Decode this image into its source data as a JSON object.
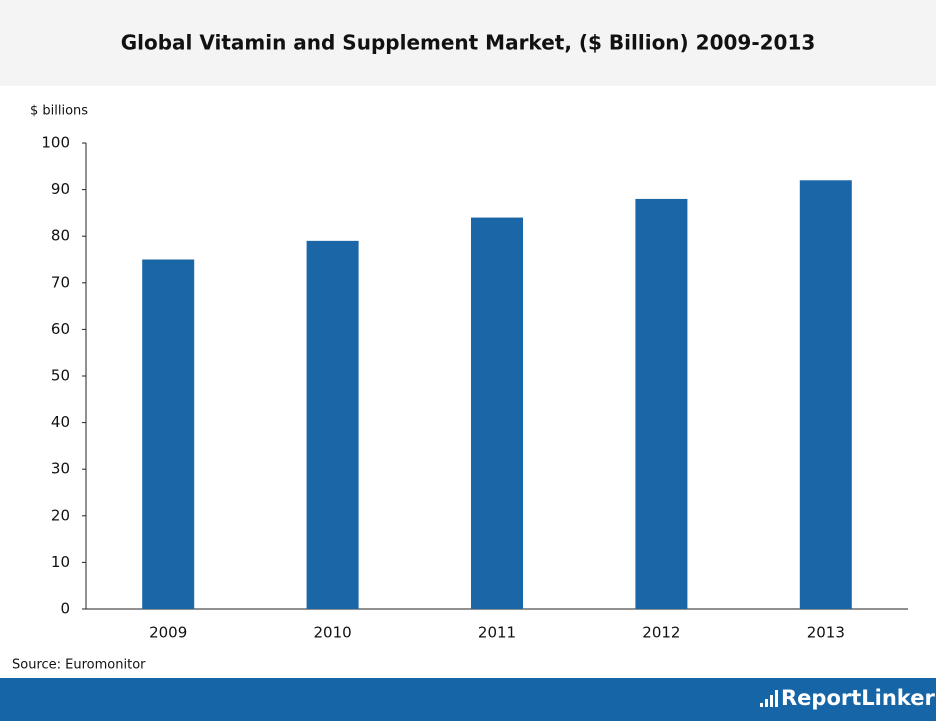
{
  "chart_data": {
    "type": "bar",
    "title": "Global Vitamin and Supplement Market, ($ Billion) 2009-2013",
    "ylabel": "$ billions",
    "categories": [
      "2009",
      "2010",
      "2011",
      "2012",
      "2013"
    ],
    "values": [
      75,
      79,
      84,
      88,
      92
    ],
    "color": "#1a66a6",
    "ylim": [
      0,
      100
    ],
    "yticks": [
      0,
      10,
      20,
      30,
      40,
      50,
      60,
      70,
      80,
      90,
      100
    ],
    "grid": false,
    "source": "Source: Euromonitor"
  },
  "footer": {
    "brand": "ReportLinker"
  }
}
